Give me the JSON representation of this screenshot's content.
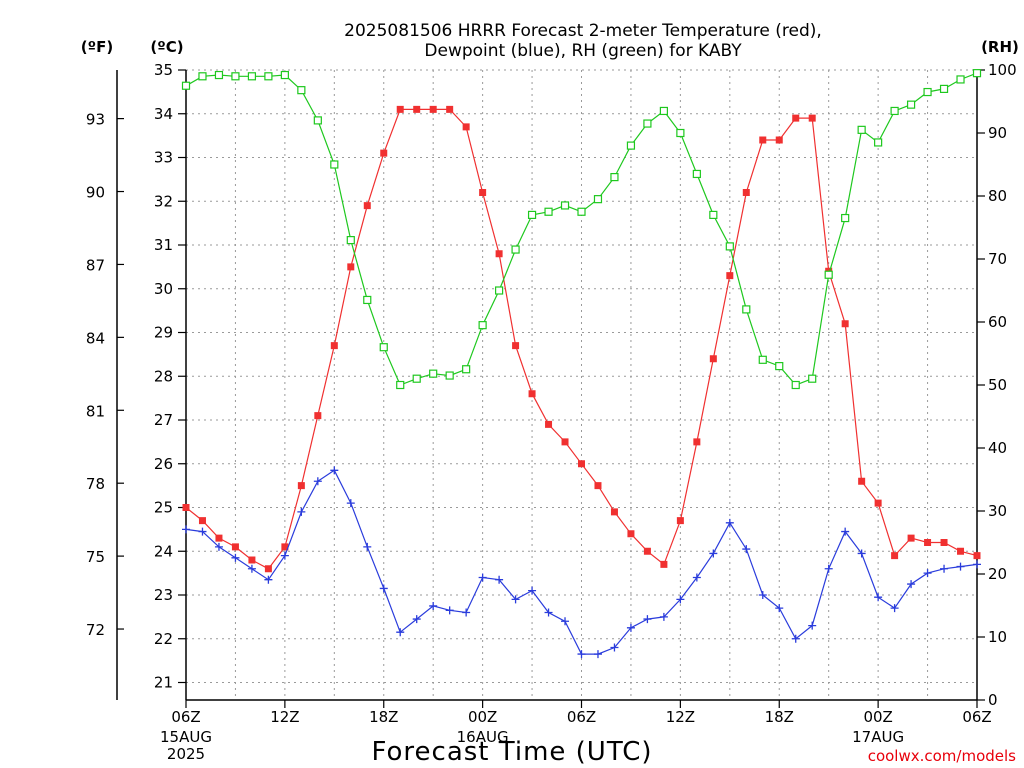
{
  "title_line1": "2025081506 HRRR Forecast 2-meter Temperature (red),",
  "title_line2": "Dewpoint (blue), RH (green) for KABY",
  "unit_f": "(ºF)",
  "unit_c": "(ºC)",
  "unit_rh": "(RH)",
  "xlabel": "Forecast Time (UTC)",
  "credit": "coolwx.com/models",
  "colors": {
    "temperature": "#f03030",
    "dewpoint": "#2a3cdc",
    "rh": "#1ec81e"
  },
  "chart_data": {
    "type": "line",
    "title": "2025081506 HRRR Forecast 2-meter Temperature (red), Dewpoint (blue), RH (green) for KABY",
    "x_hours": [
      0,
      1,
      2,
      3,
      4,
      5,
      6,
      7,
      8,
      9,
      10,
      11,
      12,
      13,
      14,
      15,
      16,
      17,
      18,
      19,
      20,
      21,
      22,
      23,
      24,
      25,
      26,
      27,
      28,
      29,
      30,
      31,
      32,
      33,
      34,
      35,
      36,
      37,
      38,
      39,
      40,
      41,
      42,
      43,
      44,
      45,
      46,
      47,
      48
    ],
    "x_ticks": [
      {
        "hour": 0,
        "label": "06Z",
        "sub1": "15AUG",
        "sub2": "2025"
      },
      {
        "hour": 6,
        "label": "12Z",
        "sub1": "",
        "sub2": ""
      },
      {
        "hour": 12,
        "label": "18Z",
        "sub1": "",
        "sub2": ""
      },
      {
        "hour": 18,
        "label": "00Z",
        "sub1": "16AUG",
        "sub2": ""
      },
      {
        "hour": 24,
        "label": "06Z",
        "sub1": "",
        "sub2": ""
      },
      {
        "hour": 30,
        "label": "12Z",
        "sub1": "",
        "sub2": ""
      },
      {
        "hour": 36,
        "label": "18Z",
        "sub1": "",
        "sub2": ""
      },
      {
        "hour": 42,
        "label": "00Z",
        "sub1": "17AUG",
        "sub2": ""
      },
      {
        "hour": 48,
        "label": "06Z",
        "sub1": "",
        "sub2": ""
      }
    ],
    "x_range": [
      0,
      48
    ],
    "y_left_c": {
      "range": [
        20.6,
        35
      ],
      "ticks": [
        21,
        22,
        23,
        24,
        25,
        26,
        27,
        28,
        29,
        30,
        31,
        32,
        33,
        34,
        35
      ]
    },
    "y_left_f": {
      "ticks": [
        72,
        75,
        78,
        81,
        84,
        87,
        90,
        93
      ]
    },
    "y_right_rh": {
      "range": [
        0,
        100
      ],
      "ticks": [
        0,
        10,
        20,
        30,
        40,
        50,
        60,
        70,
        80,
        90,
        100
      ]
    },
    "grid": true,
    "series": [
      {
        "name": "Temperature (red)",
        "axis": "C",
        "marker": "filled-square",
        "values": [
          25.0,
          24.7,
          24.3,
          24.1,
          23.8,
          23.6,
          24.1,
          25.5,
          27.1,
          28.7,
          30.5,
          31.9,
          33.1,
          34.1,
          34.1,
          34.1,
          34.1,
          33.7,
          32.2,
          30.8,
          28.7,
          27.6,
          26.9,
          26.5,
          26.0,
          25.5,
          24.9,
          24.4,
          24.0,
          23.7,
          24.7,
          26.5,
          28.4,
          30.3,
          32.2,
          33.4,
          33.4,
          33.9,
          33.9,
          30.4,
          29.2,
          25.6,
          25.1,
          23.9,
          24.3,
          24.2,
          24.2,
          24.0,
          23.9
        ]
      },
      {
        "name": "Dewpoint (blue)",
        "axis": "C",
        "marker": "plus",
        "values": [
          24.5,
          24.45,
          24.1,
          23.85,
          23.6,
          23.35,
          23.9,
          24.9,
          25.6,
          25.85,
          25.1,
          24.1,
          23.15,
          22.15,
          22.45,
          22.75,
          22.65,
          22.6,
          23.4,
          23.35,
          22.9,
          23.1,
          22.6,
          22.4,
          21.65,
          21.65,
          21.8,
          22.25,
          22.45,
          22.5,
          22.9,
          23.4,
          23.95,
          24.65,
          24.05,
          23.0,
          22.7,
          22.0,
          22.3,
          23.6,
          24.45,
          23.95,
          22.95,
          22.7,
          23.25,
          23.5,
          23.6,
          23.65,
          23.7
        ]
      },
      {
        "name": "RH (green)",
        "axis": "RH",
        "marker": "open-square",
        "values": [
          97.5,
          99.0,
          99.2,
          99.0,
          99.0,
          99.0,
          99.2,
          96.8,
          92.0,
          85.0,
          73.0,
          63.5,
          56.0,
          50.0,
          51.0,
          51.8,
          51.5,
          52.5,
          59.5,
          65.0,
          71.5,
          77.0,
          77.5,
          78.5,
          77.5,
          79.5,
          83.0,
          88.0,
          91.5,
          93.5,
          90.0,
          83.5,
          77.0,
          72.0,
          62.0,
          54.0,
          53.0,
          50.0,
          51.0,
          67.5,
          76.5,
          90.5,
          88.5,
          93.5,
          94.5,
          96.5,
          97.0,
          98.5,
          99.5
        ]
      }
    ]
  }
}
